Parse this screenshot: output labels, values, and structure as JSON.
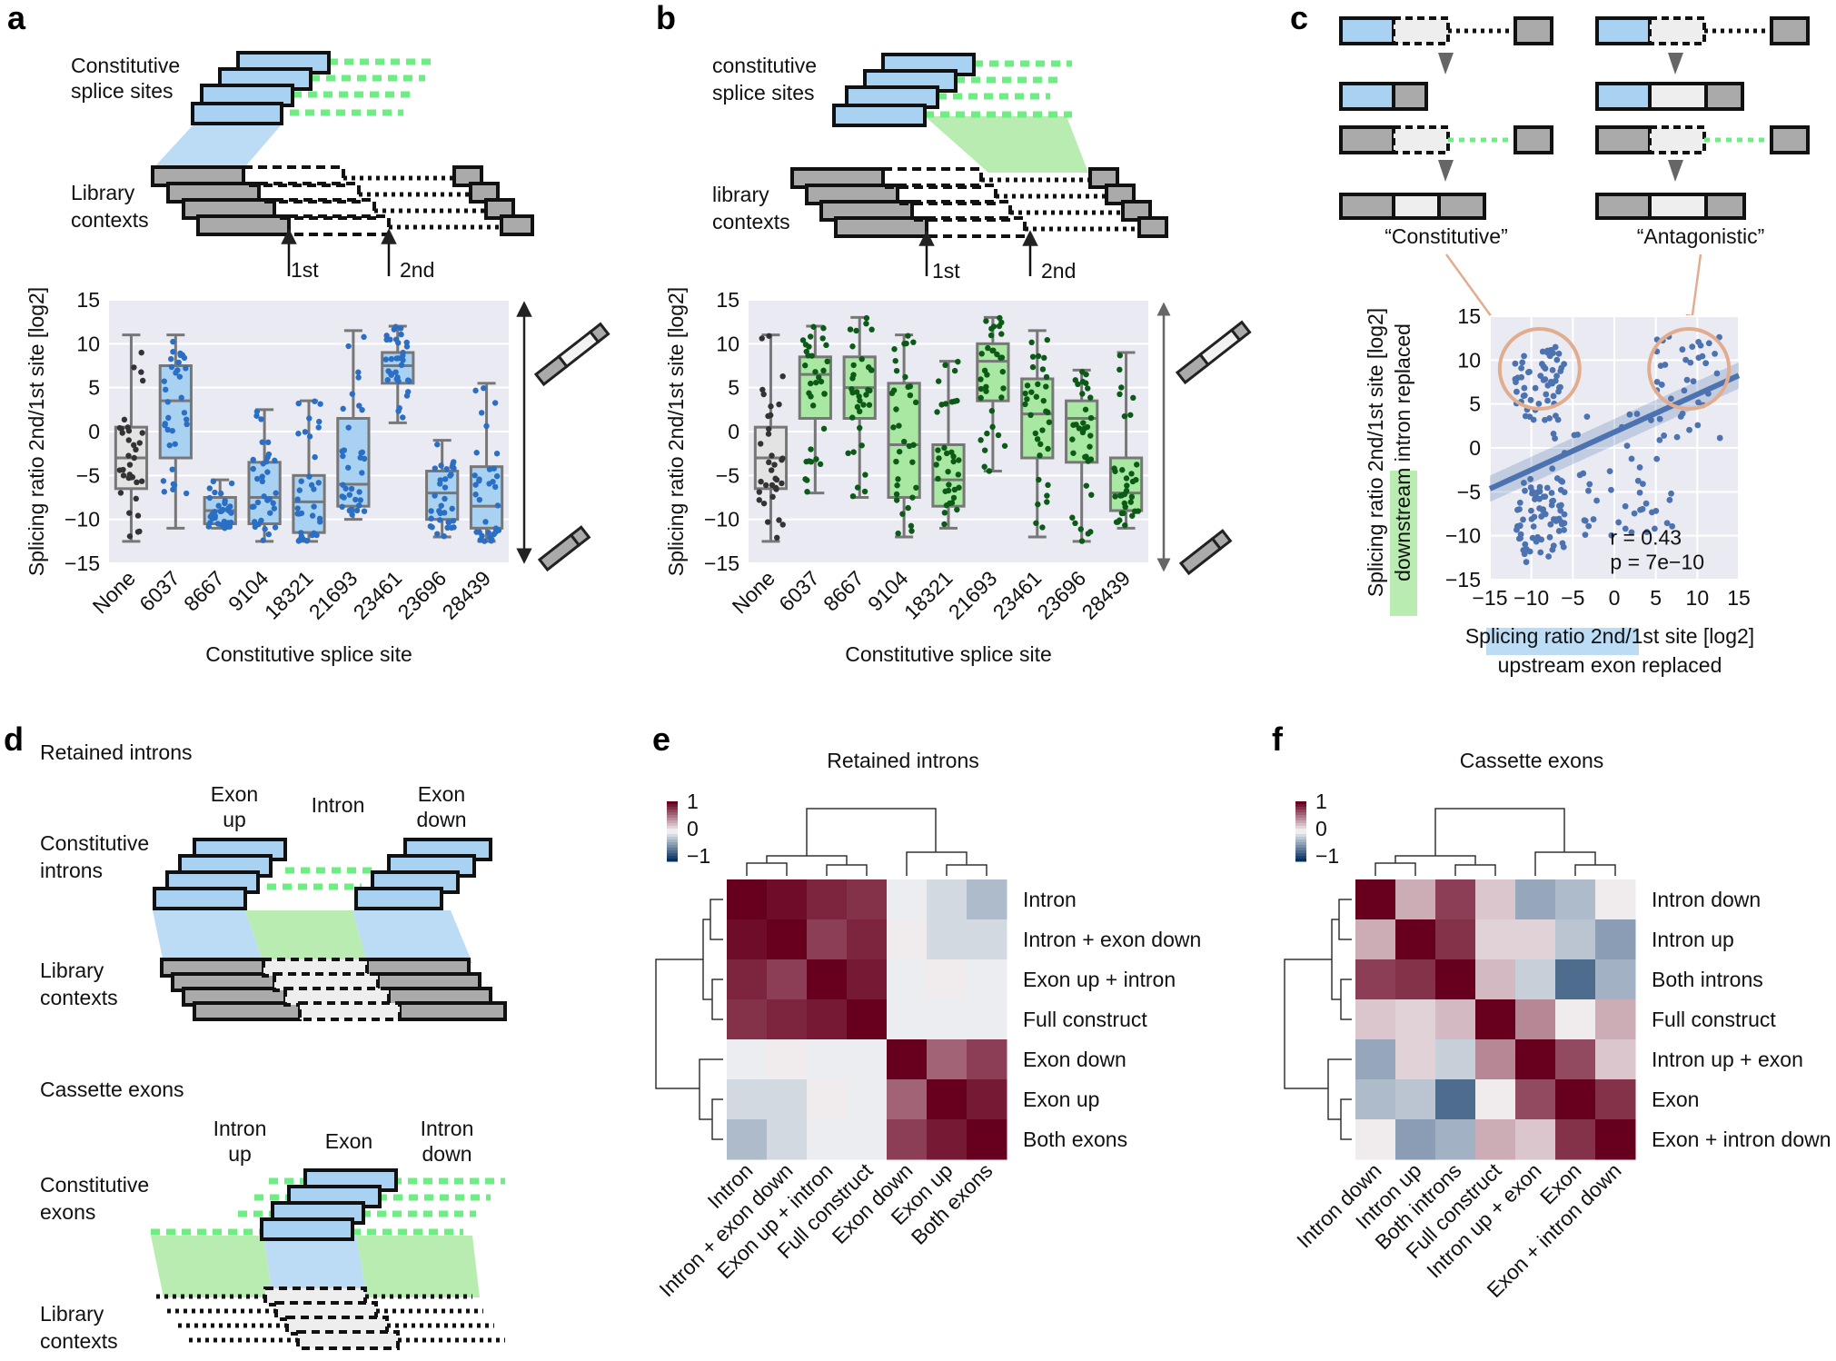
{
  "panel_labels": [
    "a",
    "b",
    "c",
    "d",
    "e",
    "f"
  ],
  "panel_a": {
    "diagram": {
      "top_label": [
        "Constitutive",
        "splice sites"
      ],
      "bottom_label": [
        "Library",
        "contexts"
      ],
      "arrow1": "1st",
      "arrow2": "2nd"
    }
  },
  "panel_b": {
    "diagram": {
      "top_label": [
        "constitutive",
        "splice sites"
      ],
      "bottom_label": [
        "library",
        "contexts"
      ],
      "arrow1": "1st",
      "arrow2": "2nd"
    }
  },
  "panel_c": {
    "label_constitutive": "“Constitutive”",
    "label_antagonistic": "“Antagonistic”",
    "xlabel_line1": "Splicing ratio 2nd/1st site [log2]",
    "xlabel_line2": "upstream exon replaced",
    "ylabel_line1": "Splicing ratio 2nd/1st site [log2]",
    "ylabel_line2": "downstream intron replaced",
    "stat_r": "r = 0.43",
    "stat_p": "p = 7e−10"
  },
  "panel_d": {
    "title_retained": "Retained introns",
    "labels_retained": {
      "exon_up": [
        "Exon",
        "up"
      ],
      "intron": "Intron",
      "exon_down": [
        "Exon",
        "down"
      ]
    },
    "constitutive_introns": [
      "Constitutive",
      "introns"
    ],
    "library_contexts_1": [
      "Library",
      "contexts"
    ],
    "title_cassette": "Cassette exons",
    "labels_cassette": {
      "intron_up": [
        "Intron",
        "up"
      ],
      "exon": "Exon",
      "intron_down": [
        "Intron",
        "down"
      ]
    },
    "constitutive_exons": [
      "Constitutive",
      "exons"
    ],
    "library_contexts_2": [
      "Library",
      "contexts"
    ]
  },
  "chart_data": [
    {
      "id": "a",
      "type": "box",
      "title": "",
      "xlabel": "Constitutive splice site",
      "ylabel": "Splicing ratio 2nd/1st site [log2]",
      "ylim": [
        -15,
        15
      ],
      "yticks": [
        15,
        10,
        5,
        0,
        -5,
        -10,
        -15
      ],
      "categories": [
        "None",
        "6037",
        "8667",
        "9104",
        "18321",
        "21693",
        "23461",
        "23696",
        "28439"
      ],
      "median": [
        -3,
        3.5,
        -9,
        -7.5,
        -8,
        -6,
        7.5,
        -7,
        -8.5
      ],
      "q1": [
        -6.5,
        -3,
        -10.5,
        -10.5,
        -11.5,
        -8.5,
        5.5,
        -10,
        -11
      ],
      "q3": [
        0.5,
        7.5,
        -7.5,
        -3.5,
        -5,
        1.5,
        9,
        -4.5,
        -4
      ],
      "whisker_low": [
        -12.5,
        -11,
        -11,
        -12.5,
        -12.5,
        -10,
        1,
        -12,
        -12.5
      ],
      "whisker_high": [
        11,
        11,
        -5.5,
        2.5,
        3.5,
        11.5,
        12,
        -1,
        5.5
      ],
      "box_colors": [
        "#e3e3e3",
        "#a9d1f2",
        "#a9d1f2",
        "#a9d1f2",
        "#a9d1f2",
        "#a9d1f2",
        "#a9d1f2",
        "#a9d1f2",
        "#a9d1f2"
      ],
      "point_colors": [
        "#333333",
        "#2a6fc4",
        "#2a6fc4",
        "#2a6fc4",
        "#2a6fc4",
        "#2a6fc4",
        "#2a6fc4",
        "#2a6fc4",
        "#2a6fc4"
      ]
    },
    {
      "id": "b",
      "type": "box",
      "title": "",
      "xlabel": "Constitutive splice site",
      "ylabel": "Splicing ratio 2nd/1st site [log2]",
      "ylim": [
        -15,
        15
      ],
      "yticks": [
        15,
        10,
        5,
        0,
        -5,
        -10,
        -15
      ],
      "categories": [
        "None",
        "6037",
        "8667",
        "9104",
        "18321",
        "21693",
        "23461",
        "23696",
        "28439"
      ],
      "median": [
        -3,
        6.5,
        5,
        -1.5,
        -5.5,
        8,
        2,
        1.5,
        -7
      ],
      "q1": [
        -6.5,
        1.5,
        1.5,
        -7.5,
        -8.5,
        3.5,
        -3,
        -3.5,
        -9
      ],
      "q3": [
        0.5,
        8.5,
        8.5,
        5.5,
        -1.5,
        10,
        6,
        3.5,
        -3
      ],
      "whisker_low": [
        -12.5,
        -7,
        -7.5,
        -12,
        -11,
        -4.5,
        -12,
        -12.5,
        -11
      ],
      "whisker_high": [
        11,
        12,
        13,
        11,
        8,
        13,
        11.5,
        7,
        9
      ],
      "box_colors": [
        "#e3e3e3",
        "#a8e8a2",
        "#a8e8a2",
        "#a8e8a2",
        "#a8e8a2",
        "#a8e8a2",
        "#a8e8a2",
        "#a8e8a2",
        "#a8e8a2"
      ],
      "point_colors": [
        "#333333",
        "#0b5a16",
        "#0b5a16",
        "#0b5a16",
        "#0b5a16",
        "#0b5a16",
        "#0b5a16",
        "#0b5a16",
        "#0b5a16"
      ]
    },
    {
      "id": "c",
      "type": "scatter",
      "title": "",
      "xlabel": "Splicing ratio 2nd/1st site [log2] upstream exon replaced",
      "ylabel": "Splicing ratio 2nd/1st site [log2] downstream intron replaced",
      "xlim": [
        -15,
        15
      ],
      "ylim": [
        -15,
        15
      ],
      "xticks": [
        -15,
        -10,
        -5,
        0,
        5,
        10,
        15
      ],
      "yticks": [
        15,
        10,
        5,
        0,
        -5,
        -10,
        -15
      ],
      "regression": {
        "slope": 0.43,
        "intercept": 1.8,
        "r": 0.43,
        "p": "7e-10"
      },
      "circles_centers": [
        [
          -9,
          9
        ],
        [
          9,
          9
        ]
      ],
      "color": "#4c72b0",
      "n_points": 220
    },
    {
      "id": "e",
      "type": "heatmap",
      "title": "Retained introns",
      "colorbar_ticks": [
        "1",
        "0",
        "−1"
      ],
      "rows": [
        "Intron",
        "Intron + exon down",
        "Exon up + intron",
        "Full construct",
        "Exon down",
        "Exon up",
        "Both exons"
      ],
      "cols": [
        "Intron",
        "Intron + exon down",
        "Exon up + intron",
        "Full construct",
        "Exon down",
        "Exon up",
        "Both exons"
      ],
      "values": [
        [
          1.0,
          0.95,
          0.85,
          0.8,
          -0.05,
          -0.15,
          -0.3
        ],
        [
          0.95,
          1.0,
          0.75,
          0.85,
          0.05,
          -0.15,
          -0.15
        ],
        [
          0.85,
          0.75,
          1.0,
          0.9,
          -0.05,
          0.05,
          -0.05
        ],
        [
          0.8,
          0.85,
          0.9,
          1.0,
          -0.05,
          -0.05,
          -0.05
        ],
        [
          -0.05,
          0.05,
          -0.05,
          -0.05,
          1.0,
          0.6,
          0.75
        ],
        [
          -0.15,
          -0.15,
          0.05,
          -0.05,
          0.6,
          1.0,
          0.9
        ],
        [
          -0.3,
          -0.15,
          -0.05,
          -0.05,
          0.75,
          0.9,
          1.0
        ]
      ]
    },
    {
      "id": "f",
      "type": "heatmap",
      "title": "Cassette exons",
      "colorbar_ticks": [
        "1",
        "0",
        "−1"
      ],
      "rows": [
        "Intron down",
        "Intron up",
        "Both introns",
        "Full construct",
        "Intron up + exon",
        "Exon",
        "Exon + intron down"
      ],
      "cols": [
        "Intron down",
        "Intron up",
        "Both introns",
        "Full construct",
        "Intron up + exon",
        "Exon",
        "Exon + intron down"
      ],
      "values": [
        [
          1.0,
          0.3,
          0.75,
          0.2,
          -0.4,
          -0.3,
          0.05
        ],
        [
          0.3,
          1.0,
          0.8,
          0.15,
          0.15,
          -0.25,
          -0.45
        ],
        [
          0.75,
          0.8,
          1.0,
          0.25,
          -0.2,
          -0.7,
          -0.35
        ],
        [
          0.2,
          0.15,
          0.25,
          1.0,
          0.45,
          0.05,
          0.3
        ],
        [
          -0.4,
          0.15,
          -0.2,
          0.45,
          1.0,
          0.7,
          0.2
        ],
        [
          -0.3,
          -0.25,
          -0.7,
          0.05,
          0.7,
          1.0,
          0.8
        ],
        [
          0.05,
          -0.45,
          -0.35,
          0.3,
          0.2,
          0.8,
          1.0
        ]
      ]
    }
  ]
}
